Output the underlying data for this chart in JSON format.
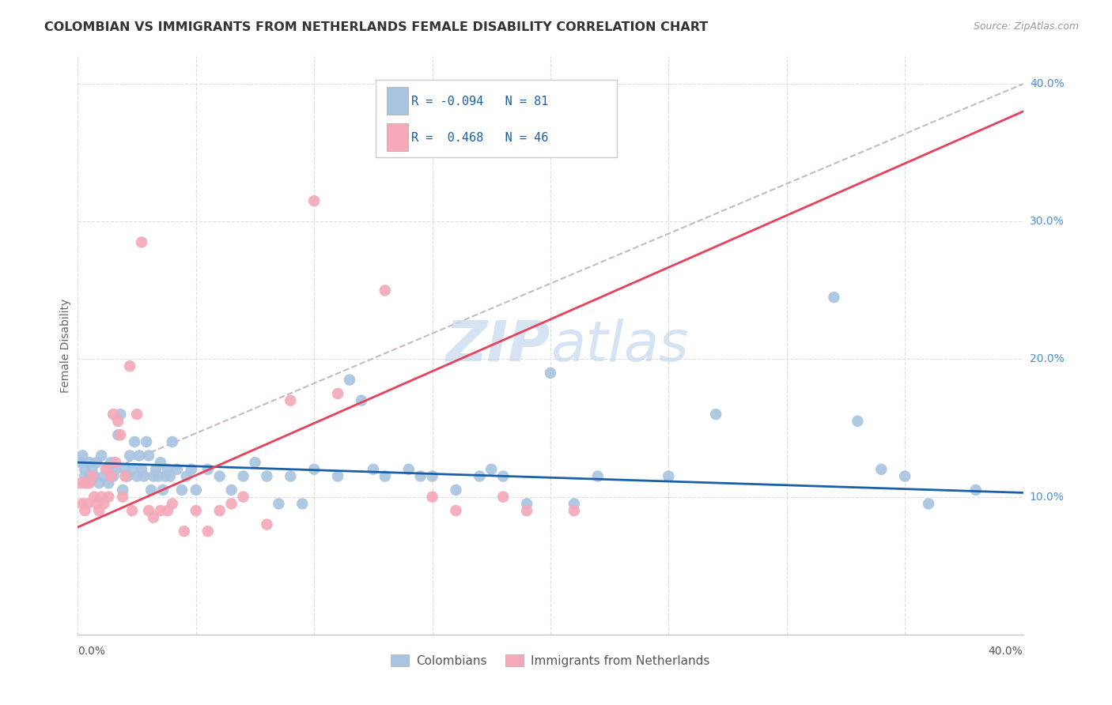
{
  "title": "COLOMBIAN VS IMMIGRANTS FROM NETHERLANDS FEMALE DISABILITY CORRELATION CHART",
  "source": "Source: ZipAtlas.com",
  "ylabel": "Female Disability",
  "xlim": [
    0.0,
    0.4
  ],
  "ylim": [
    0.0,
    0.42
  ],
  "yticks": [
    0.1,
    0.2,
    0.3,
    0.4
  ],
  "ytick_labels": [
    "10.0%",
    "20.0%",
    "30.0%",
    "40.0%"
  ],
  "R_colombians": -0.094,
  "N_colombians": 81,
  "R_netherlands": 0.468,
  "N_netherlands": 46,
  "color_colombians": "#a8c4e0",
  "color_netherlands": "#f4a8b8",
  "trendline_colombians": "#1a5fa8",
  "trendline_netherlands": "#e8405a",
  "trendline_dashed_color": "#c8b8c8",
  "watermark_color": "#d0dff0",
  "background_color": "#ffffff",
  "grid_color": "#dddddd",
  "colombians_x": [
    0.001,
    0.002,
    0.003,
    0.003,
    0.004,
    0.005,
    0.005,
    0.006,
    0.007,
    0.008,
    0.009,
    0.01,
    0.011,
    0.012,
    0.013,
    0.014,
    0.015,
    0.016,
    0.017,
    0.018,
    0.019,
    0.02,
    0.021,
    0.022,
    0.023,
    0.024,
    0.025,
    0.026,
    0.027,
    0.028,
    0.029,
    0.03,
    0.031,
    0.032,
    0.033,
    0.034,
    0.035,
    0.036,
    0.037,
    0.038,
    0.039,
    0.04,
    0.042,
    0.044,
    0.046,
    0.048,
    0.05,
    0.055,
    0.06,
    0.065,
    0.07,
    0.075,
    0.08,
    0.085,
    0.09,
    0.095,
    0.1,
    0.11,
    0.115,
    0.12,
    0.125,
    0.13,
    0.14,
    0.145,
    0.15,
    0.16,
    0.17,
    0.175,
    0.18,
    0.19,
    0.2,
    0.21,
    0.22,
    0.25,
    0.27,
    0.32,
    0.33,
    0.34,
    0.35,
    0.36,
    0.38
  ],
  "colombians_y": [
    0.125,
    0.13,
    0.115,
    0.12,
    0.11,
    0.125,
    0.115,
    0.12,
    0.115,
    0.125,
    0.11,
    0.13,
    0.115,
    0.12,
    0.11,
    0.125,
    0.115,
    0.12,
    0.145,
    0.16,
    0.105,
    0.12,
    0.115,
    0.13,
    0.12,
    0.14,
    0.115,
    0.13,
    0.12,
    0.115,
    0.14,
    0.13,
    0.105,
    0.115,
    0.12,
    0.115,
    0.125,
    0.105,
    0.115,
    0.12,
    0.115,
    0.14,
    0.12,
    0.105,
    0.115,
    0.12,
    0.105,
    0.12,
    0.115,
    0.105,
    0.115,
    0.125,
    0.115,
    0.095,
    0.115,
    0.095,
    0.12,
    0.115,
    0.185,
    0.17,
    0.12,
    0.115,
    0.12,
    0.115,
    0.115,
    0.105,
    0.115,
    0.12,
    0.115,
    0.095,
    0.19,
    0.095,
    0.115,
    0.115,
    0.16,
    0.245,
    0.155,
    0.12,
    0.115,
    0.095,
    0.105
  ],
  "netherlands_x": [
    0.001,
    0.002,
    0.003,
    0.003,
    0.004,
    0.005,
    0.006,
    0.007,
    0.008,
    0.009,
    0.01,
    0.011,
    0.012,
    0.013,
    0.014,
    0.015,
    0.016,
    0.017,
    0.018,
    0.019,
    0.02,
    0.022,
    0.023,
    0.025,
    0.027,
    0.03,
    0.032,
    0.035,
    0.038,
    0.04,
    0.045,
    0.05,
    0.055,
    0.06,
    0.065,
    0.07,
    0.08,
    0.09,
    0.1,
    0.11,
    0.13,
    0.15,
    0.16,
    0.18,
    0.19,
    0.21
  ],
  "netherlands_y": [
    0.11,
    0.095,
    0.09,
    0.11,
    0.095,
    0.11,
    0.115,
    0.1,
    0.095,
    0.09,
    0.1,
    0.095,
    0.12,
    0.1,
    0.115,
    0.16,
    0.125,
    0.155,
    0.145,
    0.1,
    0.115,
    0.195,
    0.09,
    0.16,
    0.285,
    0.09,
    0.085,
    0.09,
    0.09,
    0.095,
    0.075,
    0.09,
    0.075,
    0.09,
    0.095,
    0.1,
    0.08,
    0.17,
    0.315,
    0.175,
    0.25,
    0.1,
    0.09,
    0.1,
    0.09,
    0.09
  ]
}
